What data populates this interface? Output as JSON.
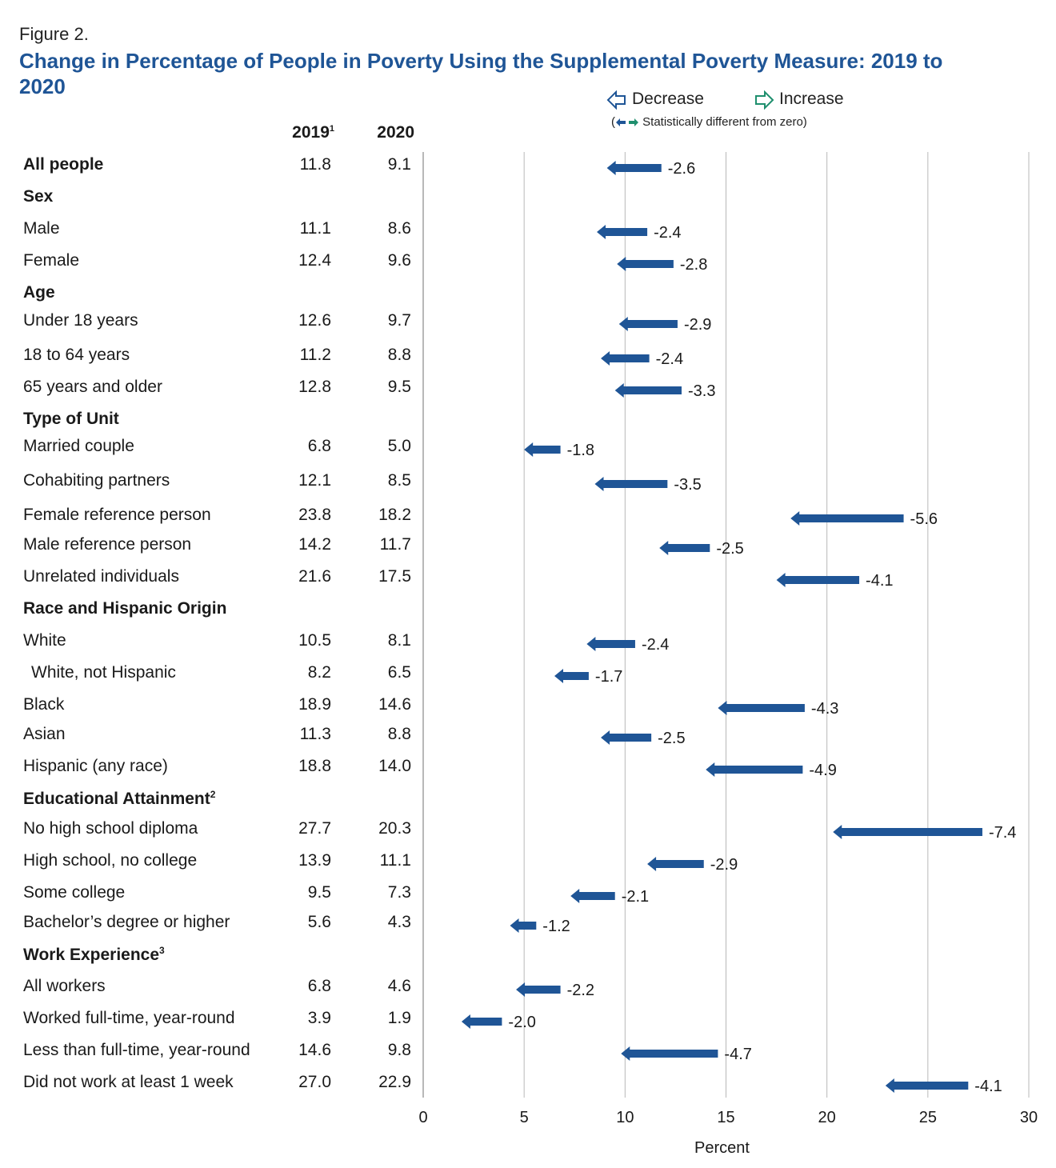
{
  "figure_label": "Figure 2.",
  "title": "Change in Percentage of People in Poverty Using the Supplemental Poverty Measure: 2019 to 2020",
  "legend": {
    "decrease": "Decrease",
    "increase": "Increase",
    "note": "Statistically different from zero)",
    "decrease_color": "#1f5596",
    "increase_color": "#1f8f6e"
  },
  "columns": {
    "c2019": "2019",
    "c2019_note": "1",
    "c2020": "2020"
  },
  "chart_data": {
    "type": "arrow-change",
    "xlabel": "Percent",
    "xlim": [
      0,
      30
    ],
    "xticks": [
      0,
      5,
      10,
      15,
      20,
      25,
      30
    ],
    "grid": true,
    "color": "#1f5596",
    "rows": [
      {
        "label": "All people",
        "bold": true,
        "v2019": 11.8,
        "v2020": 9.1,
        "change": -2.6
      },
      {
        "label": "Sex",
        "header": true
      },
      {
        "label": "Male",
        "v2019": 11.1,
        "v2020": 8.6,
        "change": -2.4
      },
      {
        "label": "Female",
        "v2019": 12.4,
        "v2020": 9.6,
        "change": -2.8
      },
      {
        "label": "Age",
        "header": true
      },
      {
        "label": "Under 18 years",
        "v2019": 12.6,
        "v2020": 9.7,
        "change": -2.9
      },
      {
        "label": "18 to 64 years",
        "v2019": 11.2,
        "v2020": 8.8,
        "change": -2.4
      },
      {
        "label": "65 years and older",
        "v2019": 12.8,
        "v2020": 9.5,
        "change": -3.3
      },
      {
        "label": "Type of Unit",
        "header": true
      },
      {
        "label": "Married couple",
        "v2019": 6.8,
        "v2020": 5.0,
        "change": -1.8
      },
      {
        "label": "Cohabiting partners",
        "v2019": 12.1,
        "v2020": 8.5,
        "change": -3.5
      },
      {
        "label": "Female reference person",
        "v2019": 23.8,
        "v2020": 18.2,
        "change": -5.6
      },
      {
        "label": "Male reference person",
        "v2019": 14.2,
        "v2020": 11.7,
        "change": -2.5
      },
      {
        "label": "Unrelated individuals",
        "v2019": 21.6,
        "v2020": 17.5,
        "change": -4.1
      },
      {
        "label": "Race and Hispanic Origin",
        "header": true
      },
      {
        "label": "White",
        "v2019": 10.5,
        "v2020": 8.1,
        "change": -2.4
      },
      {
        "label": "White, not Hispanic",
        "indent": true,
        "v2019": 8.2,
        "v2020": 6.5,
        "change": -1.7
      },
      {
        "label": "Black",
        "v2019": 18.9,
        "v2020": 14.6,
        "change": -4.3
      },
      {
        "label": "Asian",
        "v2019": 11.3,
        "v2020": 8.8,
        "change": -2.5
      },
      {
        "label": "Hispanic (any race)",
        "v2019": 18.8,
        "v2020": 14.0,
        "change": -4.9
      },
      {
        "label": "Educational Attainment",
        "note": "2",
        "header": true
      },
      {
        "label": "No high school diploma",
        "v2019": 27.7,
        "v2020": 20.3,
        "change": -7.4
      },
      {
        "label": "High school, no college",
        "v2019": 13.9,
        "v2020": 11.1,
        "change": -2.9
      },
      {
        "label": "Some college",
        "v2019": 9.5,
        "v2020": 7.3,
        "change": -2.1
      },
      {
        "label": "Bachelor’s degree or higher",
        "v2019": 5.6,
        "v2020": 4.3,
        "change": -1.2
      },
      {
        "label": "Work Experience",
        "note": "3",
        "header": true
      },
      {
        "label": "All workers",
        "v2019": 6.8,
        "v2020": 4.6,
        "change": -2.2
      },
      {
        "label": "Worked full-time, year-round",
        "v2019": 3.9,
        "v2020": 1.9,
        "change": -2.0
      },
      {
        "label": "Less than full-time, year-round",
        "v2019": 14.6,
        "v2020": 9.8,
        "change": -4.7
      },
      {
        "label": "Did not work at least 1 week",
        "v2019": 27.0,
        "v2020": 22.9,
        "change": -4.1
      }
    ]
  }
}
